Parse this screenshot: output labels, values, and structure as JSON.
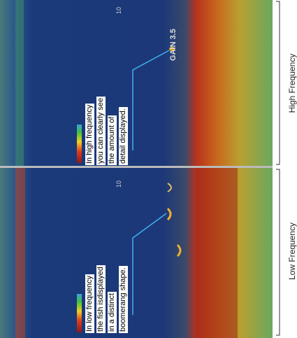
{
  "header": {
    "gain": "GAIN 3.5"
  },
  "panels": [
    {
      "label": "High Frequency",
      "depth": "10",
      "annotation": [
        "In high frequency",
        "you can clearly see",
        "the amount of",
        "detail displayed."
      ]
    },
    {
      "label": "Low Frequency",
      "depth": "10",
      "annotation": [
        "In low frequency",
        "the fish isdisplayed",
        "in a distinct",
        "boomerang shape."
      ]
    }
  ]
}
